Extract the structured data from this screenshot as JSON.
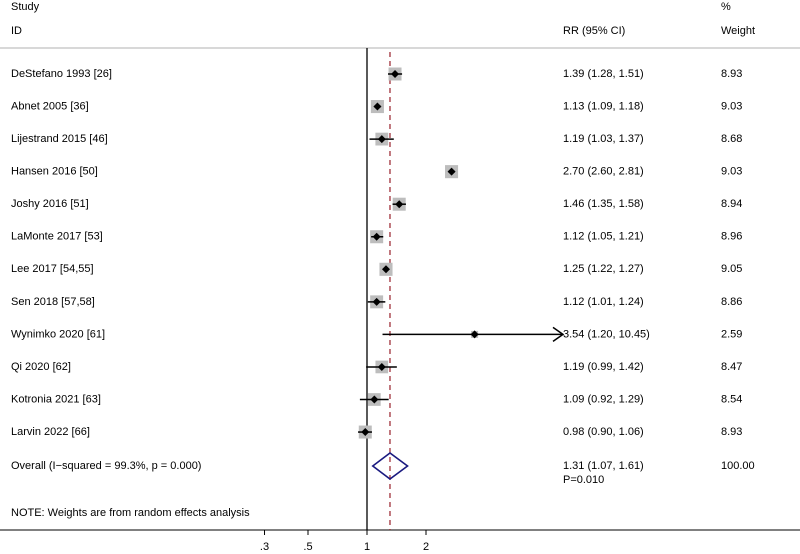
{
  "chart_data": {
    "type": "forest",
    "header": {
      "study": "Study",
      "id": "ID",
      "effect": "RR (95% CI)",
      "percent": "%",
      "weight": "Weight"
    },
    "studies": [
      {
        "name": "DeStefano 1993 [26]",
        "rr": 1.39,
        "lower": 1.28,
        "upper": 1.51,
        "weight": 8.93,
        "label": "1.39 (1.28, 1.51)"
      },
      {
        "name": "Abnet 2005 [36]",
        "rr": 1.13,
        "lower": 1.09,
        "upper": 1.18,
        "weight": 9.03,
        "label": "1.13 (1.09, 1.18)"
      },
      {
        "name": "Lijestrand 2015 [46]",
        "rr": 1.19,
        "lower": 1.03,
        "upper": 1.37,
        "weight": 8.68,
        "label": "1.19 (1.03, 1.37)"
      },
      {
        "name": "Hansen 2016 [50]",
        "rr": 2.7,
        "lower": 2.6,
        "upper": 2.81,
        "weight": 9.03,
        "label": "2.70 (2.60, 2.81)"
      },
      {
        "name": "Joshy 2016 [51]",
        "rr": 1.46,
        "lower": 1.35,
        "upper": 1.58,
        "weight": 8.94,
        "label": "1.46 (1.35, 1.58)"
      },
      {
        "name": "LaMonte 2017 [53]",
        "rr": 1.12,
        "lower": 1.05,
        "upper": 1.21,
        "weight": 8.96,
        "label": "1.12 (1.05, 1.21)"
      },
      {
        "name": "Lee 2017 [54,55]",
        "rr": 1.25,
        "lower": 1.22,
        "upper": 1.27,
        "weight": 9.05,
        "label": "1.25 (1.22, 1.27)"
      },
      {
        "name": "Sen 2018 [57,58]",
        "rr": 1.12,
        "lower": 1.01,
        "upper": 1.24,
        "weight": 8.86,
        "label": "1.12 (1.01, 1.24)"
      },
      {
        "name": "Wynimko 2020 [61]",
        "rr": 3.54,
        "lower": 1.2,
        "upper": 10.45,
        "weight": 2.59,
        "label": "3.54 (1.20, 10.45)"
      },
      {
        "name": "Qi 2020 [62]",
        "rr": 1.19,
        "lower": 0.99,
        "upper": 1.42,
        "weight": 8.47,
        "label": "1.19 (0.99, 1.42)"
      },
      {
        "name": "Kotronia 2021 [63]",
        "rr": 1.09,
        "lower": 0.92,
        "upper": 1.29,
        "weight": 8.54,
        "label": "1.09 (0.92, 1.29)"
      },
      {
        "name": "Larvin 2022 [66]",
        "rr": 0.98,
        "lower": 0.9,
        "upper": 1.06,
        "weight": 8.93,
        "label": "0.98 (0.90, 1.06)"
      }
    ],
    "overall": {
      "name": "Overall  (I−squared = 99.3%, p = 0.000)",
      "rr": 1.31,
      "lower": 1.07,
      "upper": 1.61,
      "weight": 100,
      "weight_label": "100.00",
      "label": "1.31 (1.07, 1.61)",
      "p_label": "P=0.010"
    },
    "note": "NOTE: Weights are from random effects analysis",
    "null_value": 1,
    "log_scale": true,
    "xlim": [
      0.1,
      10
    ],
    "xticks": [
      {
        "value": 0.3,
        "label": ".3"
      },
      {
        "value": 0.5,
        "label": ".5"
      },
      1,
      2
    ],
    "box_color": "#bdbdbd",
    "diamond_color": "#1a1a80",
    "overall_line_color": "#a0303a"
  }
}
